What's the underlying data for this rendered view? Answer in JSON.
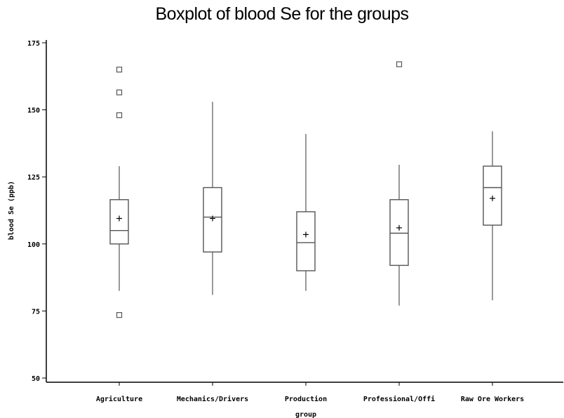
{
  "chart_data": {
    "type": "boxplot",
    "title": "Boxplot of blood Se for the groups",
    "xlabel": "group",
    "ylabel": "blood Se (ppb)",
    "ylim": [
      50,
      175
    ],
    "yticks": [
      50,
      75,
      100,
      125,
      150,
      175
    ],
    "grid": false,
    "categories": [
      "Agriculture",
      "Mechanics/Drivers",
      "Production",
      "Professional/Offi",
      "Raw Ore Workers"
    ],
    "boxes": [
      {
        "group": "Agriculture",
        "whisker_low": 82.5,
        "q1": 100,
        "median": 105,
        "q3": 116.5,
        "whisker_high": 129,
        "mean": 109.5,
        "outliers": [
          73.5,
          148,
          156.5,
          165
        ]
      },
      {
        "group": "Mechanics/Drivers",
        "whisker_low": 81,
        "q1": 97,
        "median": 110,
        "q3": 121,
        "whisker_high": 153,
        "mean": 109.5,
        "outliers": []
      },
      {
        "group": "Production",
        "whisker_low": 82.5,
        "q1": 90,
        "median": 100.5,
        "q3": 112,
        "whisker_high": 141,
        "mean": 103.5,
        "outliers": []
      },
      {
        "group": "Professional/Offi",
        "whisker_low": 77,
        "q1": 92,
        "median": 104,
        "q3": 116.5,
        "whisker_high": 129.5,
        "mean": 106,
        "outliers": [
          167
        ]
      },
      {
        "group": "Raw Ore Workers",
        "whisker_low": 79,
        "q1": 107,
        "median": 121,
        "q3": 129,
        "whisker_high": 142,
        "mean": 117,
        "outliers": []
      }
    ]
  }
}
